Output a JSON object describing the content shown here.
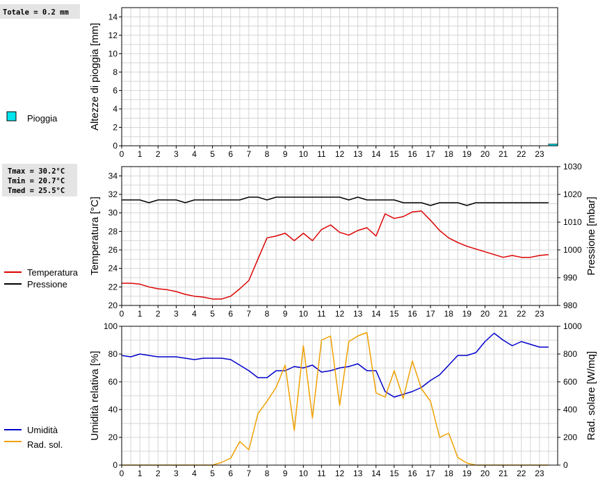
{
  "stats": {
    "total_rain": "Totale = 0.2 mm",
    "tmax": "Tmax = 30.2°C",
    "tmin": "Tmin = 20.7°C",
    "tmed": "Tmed = 25.5°C"
  },
  "colors": {
    "rain": "#00e5ee",
    "temperature": "#dd0000",
    "pressure": "#000000",
    "humidity": "#0000cc",
    "radiation": "#f0a000",
    "grid": "#d4d4d4"
  },
  "chart_data": [
    {
      "type": "bar",
      "ylabel": "Altezze di pioggia [mm]",
      "xlim": [
        0,
        24
      ],
      "xticks": [
        "0",
        "1",
        "2",
        "3",
        "4",
        "5",
        "6",
        "7",
        "8",
        "9",
        "10",
        "11",
        "12",
        "13",
        "14",
        "15",
        "16",
        "17",
        "18",
        "19",
        "20",
        "21",
        "22",
        "23"
      ],
      "ylim": [
        0,
        15
      ],
      "yticks": [
        0,
        2,
        4,
        6,
        8,
        10,
        12,
        14
      ],
      "grid": true,
      "legend_position": "left",
      "series": [
        {
          "name": "Pioggia",
          "color": "#00e5ee",
          "x": [
            23.5
          ],
          "values": [
            0.2
          ],
          "bar_width": 0.5
        }
      ]
    },
    {
      "type": "line",
      "ylabel": "Temperatura [°C]",
      "y2label": "Pressione [mbar]",
      "xlim": [
        0,
        24
      ],
      "xticks": [
        "0",
        "1",
        "2",
        "3",
        "4",
        "5",
        "6",
        "7",
        "8",
        "9",
        "10",
        "11",
        "12",
        "13",
        "14",
        "15",
        "16",
        "17",
        "18",
        "19",
        "20",
        "21",
        "22",
        "23"
      ],
      "ylim": [
        20,
        35
      ],
      "yticks": [
        20,
        22,
        24,
        26,
        28,
        30,
        32,
        34
      ],
      "y2lim": [
        980,
        1030
      ],
      "y2ticks": [
        980,
        990,
        1000,
        1010,
        1020,
        1030
      ],
      "grid": true,
      "legend_position": "left",
      "series": [
        {
          "name": "Temperatura",
          "axis": "left",
          "color": "#dd0000",
          "x": [
            0,
            0.5,
            1,
            1.5,
            2,
            2.5,
            3,
            3.5,
            4,
            4.5,
            5,
            5.5,
            6,
            6.5,
            7,
            7.5,
            8,
            8.5,
            9,
            9.5,
            10,
            10.5,
            11,
            11.5,
            12,
            12.5,
            13,
            13.5,
            14,
            14.5,
            15,
            15.5,
            16,
            16.5,
            17,
            17.5,
            18,
            18.5,
            19,
            19.5,
            20,
            20.5,
            21,
            21.5,
            22,
            22.5,
            23,
            23.5
          ],
          "values": [
            22.4,
            22.4,
            22.3,
            22.0,
            21.8,
            21.7,
            21.5,
            21.2,
            21.0,
            20.9,
            20.7,
            20.7,
            21.0,
            21.8,
            22.7,
            25.0,
            27.3,
            27.5,
            27.8,
            27.0,
            27.8,
            27.0,
            28.2,
            28.7,
            27.9,
            27.6,
            28.1,
            28.4,
            27.5,
            29.9,
            29.4,
            29.6,
            30.1,
            30.2,
            29.2,
            28.1,
            27.3,
            26.8,
            26.4,
            26.1,
            25.8,
            25.5,
            25.2,
            25.4,
            25.2,
            25.2,
            25.4,
            25.5
          ]
        },
        {
          "name": "Pressione",
          "axis": "right",
          "color": "#000000",
          "x": [
            0,
            0.5,
            1,
            1.5,
            2,
            2.5,
            3,
            3.5,
            4,
            4.5,
            5,
            5.5,
            6,
            6.5,
            7,
            7.5,
            8,
            8.5,
            9,
            9.5,
            10,
            10.5,
            11,
            11.5,
            12,
            12.5,
            13,
            13.5,
            14,
            14.5,
            15,
            15.5,
            16,
            16.5,
            17,
            17.5,
            18,
            18.5,
            19,
            19.5,
            20,
            20.5,
            21,
            21.5,
            22,
            22.5,
            23,
            23.5
          ],
          "values": [
            1018,
            1018,
            1018,
            1017,
            1018,
            1018,
            1018,
            1017,
            1018,
            1018,
            1018,
            1018,
            1018,
            1018,
            1019,
            1019,
            1018,
            1019,
            1019,
            1019,
            1019,
            1019,
            1019,
            1019,
            1019,
            1018,
            1019,
            1018,
            1018,
            1018,
            1018,
            1017,
            1017,
            1017,
            1016,
            1017,
            1017,
            1017,
            1016,
            1017,
            1017,
            1017,
            1017,
            1017,
            1017,
            1017,
            1017,
            1017
          ]
        }
      ]
    },
    {
      "type": "line",
      "ylabel": "Umidità relativa [%]",
      "y2label": "Rad. solare [W/mq]",
      "xlim": [
        0,
        24
      ],
      "xticks": [
        "0",
        "1",
        "2",
        "3",
        "4",
        "5",
        "6",
        "7",
        "8",
        "9",
        "10",
        "11",
        "12",
        "13",
        "14",
        "15",
        "16",
        "17",
        "18",
        "19",
        "20",
        "21",
        "22",
        "23"
      ],
      "ylim": [
        0,
        100
      ],
      "yticks": [
        0,
        20,
        40,
        60,
        80,
        100
      ],
      "y2lim": [
        0,
        1000
      ],
      "y2ticks": [
        0,
        200,
        400,
        600,
        800,
        1000
      ],
      "grid": true,
      "legend_position": "left",
      "series": [
        {
          "name": "Umidità",
          "axis": "left",
          "color": "#0000cc",
          "x": [
            0,
            0.5,
            1,
            1.5,
            2,
            2.5,
            3,
            3.5,
            4,
            4.5,
            5,
            5.5,
            6,
            6.5,
            7,
            7.5,
            8,
            8.5,
            9,
            9.5,
            10,
            10.5,
            11,
            11.5,
            12,
            12.5,
            13,
            13.5,
            14,
            14.5,
            15,
            15.5,
            16,
            16.5,
            17,
            17.5,
            18,
            18.5,
            19,
            19.5,
            20,
            20.5,
            21,
            21.5,
            22,
            22.5,
            23,
            23.5
          ],
          "values": [
            79,
            78,
            80,
            79,
            78,
            78,
            78,
            77,
            76,
            77,
            77,
            77,
            76,
            72,
            68,
            63,
            63,
            68,
            68,
            71,
            70,
            72,
            67,
            68,
            70,
            71,
            73,
            68,
            68,
            53,
            49,
            51,
            53,
            56,
            61,
            65,
            72,
            79,
            79,
            81,
            89,
            95,
            90,
            86,
            89,
            87,
            85,
            85
          ]
        },
        {
          "name": "Rad. sol.",
          "axis": "right",
          "color": "#f0a000",
          "x": [
            0,
            0.5,
            1,
            1.5,
            2,
            2.5,
            3,
            3.5,
            4,
            4.5,
            5,
            5.5,
            6,
            6.5,
            7,
            7.5,
            8,
            8.5,
            9,
            9.5,
            10,
            10.5,
            11,
            11.5,
            12,
            12.5,
            13,
            13.5,
            14,
            14.5,
            15,
            15.5,
            16,
            16.5,
            17,
            17.5,
            18,
            18.5,
            19,
            19.5,
            20,
            20.5,
            21,
            21.5,
            22,
            22.5,
            23,
            23.5
          ],
          "values": [
            0,
            0,
            0,
            0,
            0,
            0,
            0,
            0,
            0,
            0,
            0,
            20,
            50,
            170,
            110,
            370,
            460,
            560,
            720,
            250,
            860,
            340,
            900,
            930,
            430,
            890,
            930,
            955,
            520,
            490,
            680,
            480,
            750,
            550,
            460,
            200,
            230,
            55,
            15,
            0,
            0,
            0,
            0,
            0,
            0,
            0,
            0,
            0
          ]
        }
      ]
    }
  ]
}
